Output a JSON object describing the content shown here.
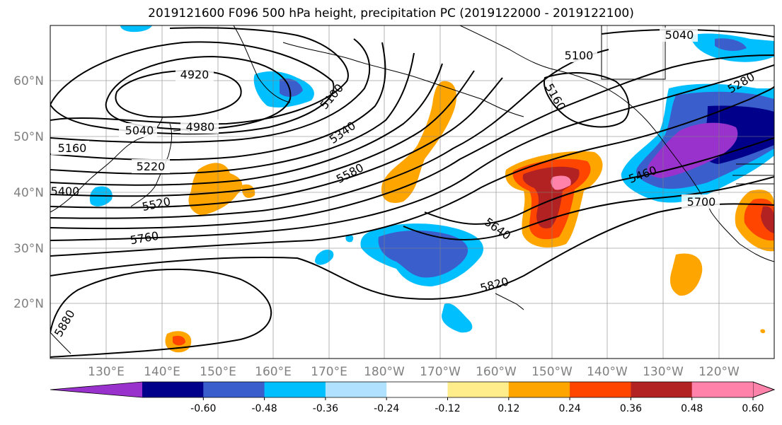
{
  "title": "2019121600 F096 500 hPa height, precipitation PC (2019122000 - 2019122100)",
  "lat_labels": [
    "60°N",
    "50°N",
    "40°N",
    "30°N",
    "20°N"
  ],
  "lon_labels": [
    "130°E",
    "140°E",
    "150°E",
    "160°E",
    "170°E",
    "180°W",
    "170°W",
    "160°W",
    "150°W",
    "140°W",
    "130°W",
    "120°W"
  ],
  "contour_labels": [
    "4920",
    "4980",
    "5040",
    "5100",
    "5160",
    "5220",
    "5280",
    "5340",
    "5400",
    "5460",
    "5520",
    "5580",
    "5640",
    "5700",
    "5760",
    "5820",
    "5880",
    "5040",
    "5100",
    "5160",
    "5280"
  ],
  "colorbar": {
    "colors": [
      "#9932cc",
      "#00008b",
      "#3a5fcd",
      "#00bfff",
      "#b0e2ff",
      "#ffffff",
      "#ffec8b",
      "#ffa500",
      "#ff4500",
      "#b22222",
      "#ff82ab"
    ],
    "tick_labels": [
      "-0.60",
      "-0.48",
      "-0.36",
      "-0.24",
      "-0.12",
      "0.12",
      "0.24",
      "0.36",
      "0.48",
      "0.60"
    ]
  }
}
